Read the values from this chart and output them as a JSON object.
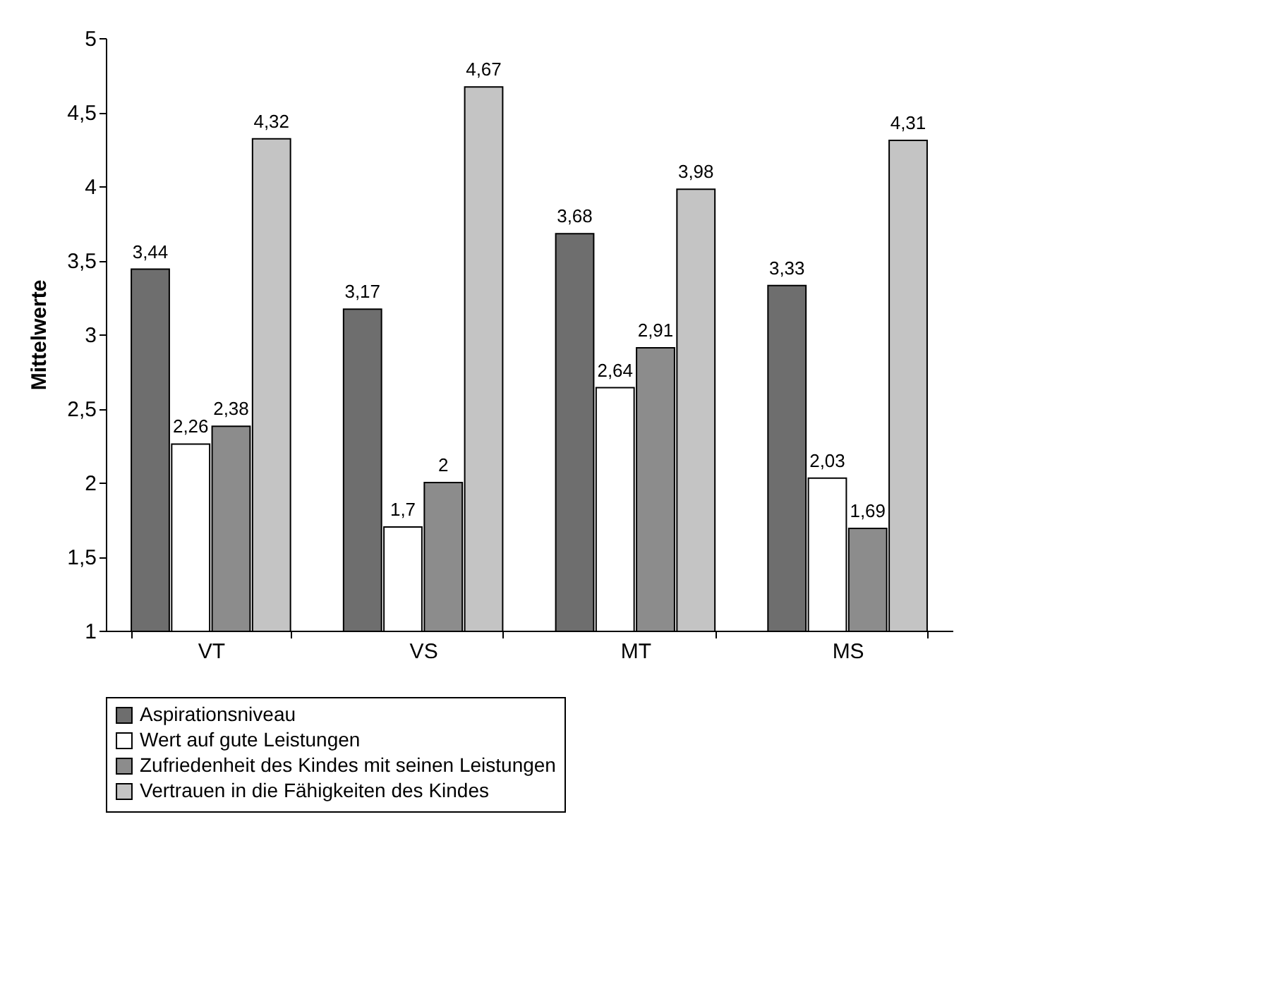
{
  "chart_data": {
    "type": "bar",
    "ylabel": "Mittelwerte",
    "categories": [
      "VT",
      "VS",
      "MT",
      "MS"
    ],
    "series": [
      {
        "name": "Aspirationsniveau",
        "color": "#6e6e6e",
        "values": [
          3.44,
          3.17,
          3.68,
          3.33
        ],
        "value_labels": [
          "3,44",
          "3,17",
          "3,68",
          "3,33"
        ]
      },
      {
        "name": "Wert auf gute Leistungen",
        "color": "#ffffff",
        "values": [
          2.26,
          1.7,
          2.64,
          2.03
        ],
        "value_labels": [
          "2,26",
          "1,7",
          "2,64",
          "2,03"
        ]
      },
      {
        "name": "Zufriedenheit des Kindes mit seinen Leistungen",
        "color": "#8c8c8c",
        "values": [
          2.38,
          2,
          2.91,
          1.69
        ],
        "value_labels": [
          "2,38",
          "2",
          "2,91",
          "1,69"
        ]
      },
      {
        "name": "Vertrauen in die Fähigkeiten des Kindes",
        "color": "#c4c4c4",
        "values": [
          4.32,
          4.67,
          3.98,
          4.31
        ],
        "value_labels": [
          "4,32",
          "4,67",
          "3,98",
          "4,31"
        ]
      }
    ],
    "ylim": [
      1,
      5
    ],
    "yticks": [
      1,
      {
        "value": 1.5,
        "label": "1,5"
      },
      2,
      {
        "value": 2.5,
        "label": "2,5"
      },
      3,
      {
        "value": 3.5,
        "label": "3,5"
      },
      4,
      {
        "value": 4.5,
        "label": "4,5"
      },
      5
    ],
    "grid": false,
    "legend": "bottom"
  }
}
